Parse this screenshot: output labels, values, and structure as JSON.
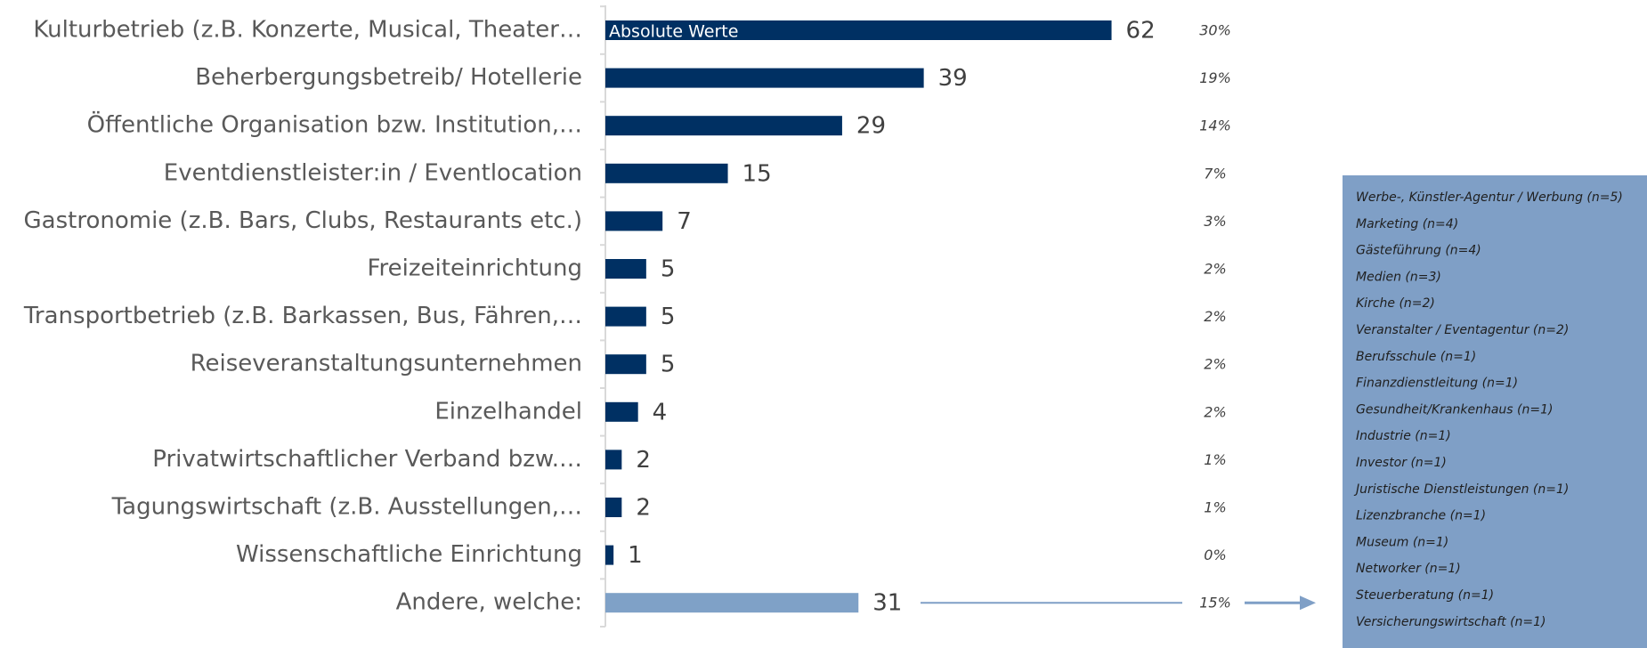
{
  "chart_data": {
    "type": "bar",
    "orientation": "horizontal",
    "categories": [
      "Kulturbetrieb (z.B. Konzerte, Musical, Theater…",
      "Beherbergungsbetreib/ Hotellerie",
      "Öffentliche Organisation bzw. Institution,…",
      "Eventdienstleister:in / Eventlocation",
      "Gastronomie (z.B. Bars, Clubs, Restaurants etc.)",
      "Freizeiteinrichtung",
      "Transportbetrieb (z.B. Barkassen, Bus, Fähren,…",
      "Reiseveranstaltungsunternehmen",
      "Einzelhandel",
      "Privatwirtschaftlicher Verband bzw.…",
      "Tagungswirtschaft (z.B. Ausstellungen,…",
      "Wissenschaftliche Einrichtung",
      "Andere, welche:"
    ],
    "series": [
      {
        "name": "Absolute Werte",
        "color": "#003063",
        "colors": [
          "#003063",
          "#003063",
          "#003063",
          "#003063",
          "#003063",
          "#003063",
          "#003063",
          "#003063",
          "#003063",
          "#003063",
          "#003063",
          "#003063",
          "#7fa1c7"
        ],
        "values": [
          62,
          39,
          29,
          15,
          7,
          5,
          5,
          5,
          4,
          2,
          2,
          1,
          31
        ]
      }
    ],
    "percent_labels": [
      "30%",
      "19%",
      "14%",
      "7%",
      "3%",
      "2%",
      "2%",
      "2%",
      "2%",
      "1%",
      "1%",
      "0%",
      "15%"
    ],
    "xlim": [
      0,
      100
    ],
    "annotation": {
      "color": "#7f9fc6",
      "items": [
        "Werbe-, Künstler-Agentur / Werbung (n=5)",
        "Marketing (n=4)",
        "Gästeführung (n=4)",
        "Medien (n=3)",
        "Kirche (n=2)",
        "Veranstalter / Eventagentur (n=2)",
        "Berufsschule (n=1)",
        "Finanzdienstleitung (n=1)",
        "Gesundheit/Krankenhaus (n=1)",
        "Industrie (n=1)",
        "Investor (n=1)",
        "Juristische Dienstleistungen (n=1)",
        "Lizenzbranche (n=1)",
        "Museum (n=1)",
        "Networker (n=1)",
        "Steuerberatung (n=1)",
        "Versicherungswirtschaft (n=1)"
      ]
    }
  }
}
